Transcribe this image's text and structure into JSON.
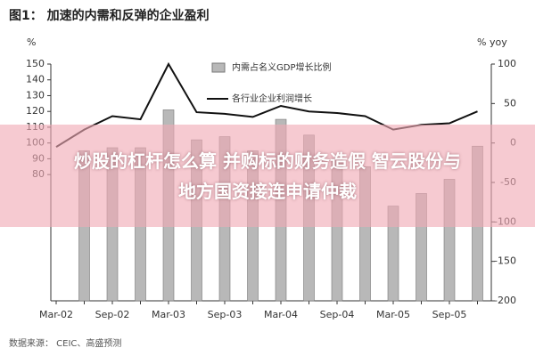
{
  "chart_data": {
    "type": "bar-line",
    "title": "图1： 加速的内需和反弹的企业盈利",
    "y_label": "%",
    "y2_label": "% yoy",
    "source": "数据来源： CEIC、高盛预测",
    "categories": [
      "Mar-02",
      null,
      "Sep-02",
      null,
      "Mar-03",
      null,
      "Sep-03",
      null,
      "Mar-04",
      null,
      "Sep-04",
      null,
      "Mar-05",
      null,
      "Sep-05",
      null
    ],
    "series": [
      {
        "name": "内需占名义GDP增长比例",
        "color": "#b8b8b8",
        "type": "bar",
        "values": [
          null,
          95,
          97,
          97,
          121,
          102,
          104,
          95,
          115,
          105,
          90,
          85,
          60,
          68,
          77,
          98
        ]
      },
      {
        "name": "各行业企业利润增长",
        "color": "#111111",
        "type": "line",
        "axis": "y2",
        "values": [
          -5,
          17,
          34,
          30,
          100,
          39,
          37,
          33,
          47,
          40,
          38,
          34,
          17,
          23,
          25,
          40
        ]
      }
    ],
    "ylim": [
      0,
      150
    ],
    "yticks": [
      80,
      90,
      100,
      110,
      120,
      130,
      140,
      150
    ],
    "y2lim": [
      -200,
      100
    ],
    "y2ticks": [
      -200,
      -150,
      -100,
      -50,
      0,
      50,
      100
    ]
  },
  "overlay": {
    "lines": [
      "炒股的杠杆怎么算 并购标的财务造假 智云股份与",
      "地方国资接连申请仲裁"
    ]
  }
}
